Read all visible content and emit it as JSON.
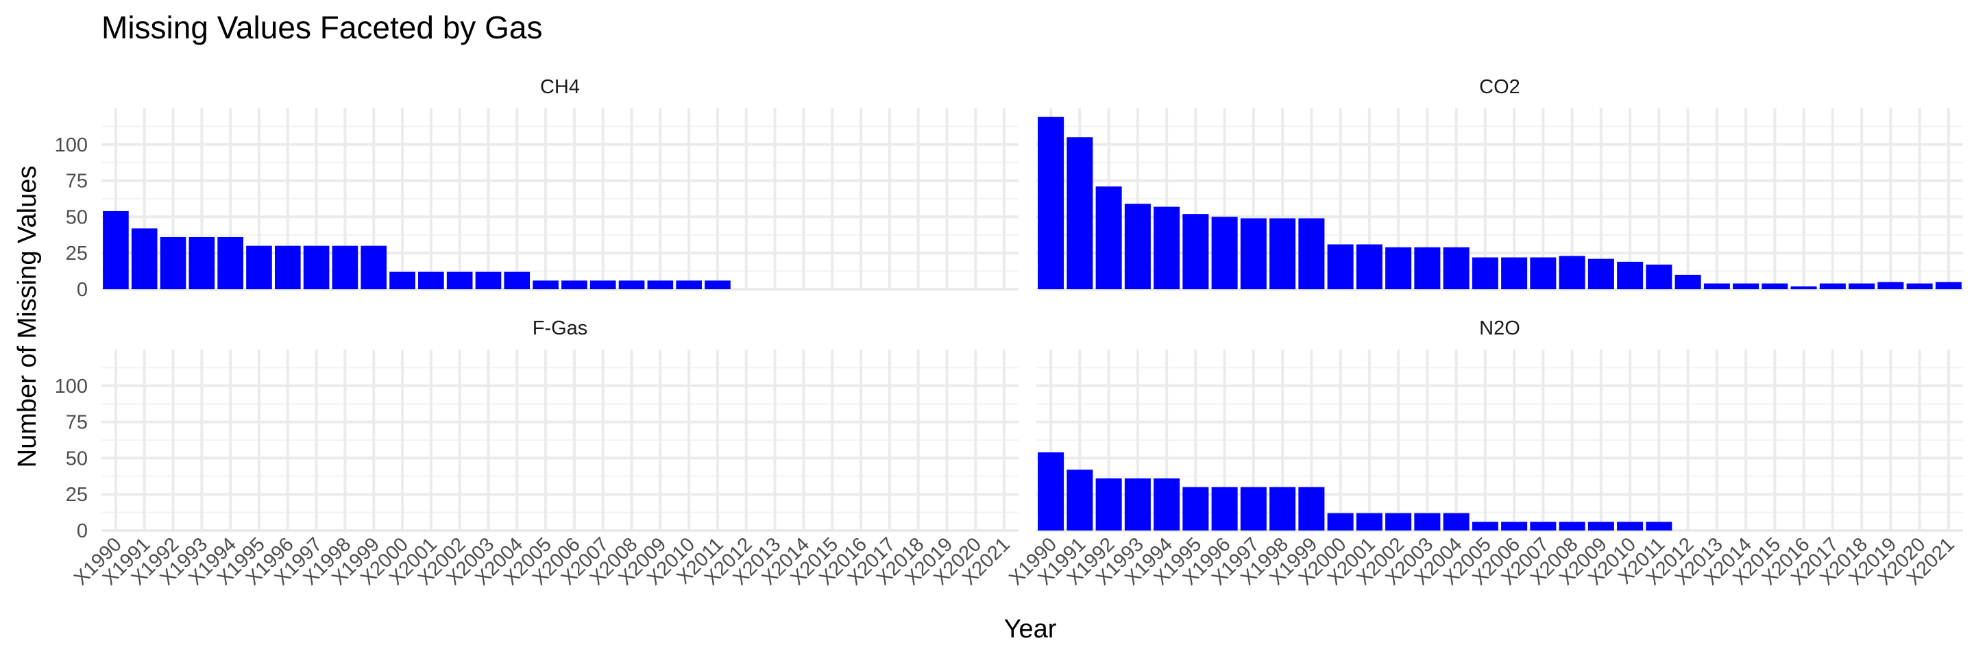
{
  "chart_data": {
    "type": "bar",
    "title": "Missing Values Faceted by Gas",
    "xlabel": "Year",
    "ylabel": "Number of Missing Values",
    "ylim": [
      0,
      125
    ],
    "yticks": [
      0,
      25,
      50,
      75,
      100
    ],
    "grid": true,
    "legend": "none",
    "bar_color": "#0000FF",
    "categories": [
      "X1990",
      "X1991",
      "X1992",
      "X1993",
      "X1994",
      "X1995",
      "X1996",
      "X1997",
      "X1998",
      "X1999",
      "X2000",
      "X2001",
      "X2002",
      "X2003",
      "X2004",
      "X2005",
      "X2006",
      "X2007",
      "X2008",
      "X2009",
      "X2010",
      "X2011",
      "X2012",
      "X2013",
      "X2014",
      "X2015",
      "X2016",
      "X2017",
      "X2018",
      "X2019",
      "X2020",
      "X2021"
    ],
    "facets": [
      {
        "name": "CH4",
        "values": [
          54,
          42,
          36,
          36,
          36,
          30,
          30,
          30,
          30,
          30,
          12,
          12,
          12,
          12,
          12,
          6,
          6,
          6,
          6,
          6,
          6,
          6,
          0,
          0,
          0,
          0,
          0,
          0,
          0,
          0,
          0,
          0
        ]
      },
      {
        "name": "CO2",
        "values": [
          119,
          105,
          71,
          59,
          57,
          52,
          50,
          49,
          49,
          49,
          31,
          31,
          29,
          29,
          29,
          22,
          22,
          22,
          23,
          21,
          19,
          17,
          10,
          4,
          4,
          4,
          2,
          4,
          4,
          5,
          4,
          5
        ]
      },
      {
        "name": "F-Gas",
        "values": [
          0,
          0,
          0,
          0,
          0,
          0,
          0,
          0,
          0,
          0,
          0,
          0,
          0,
          0,
          0,
          0,
          0,
          0,
          0,
          0,
          0,
          0,
          0,
          0,
          0,
          0,
          0,
          0,
          0,
          0,
          0,
          0
        ]
      },
      {
        "name": "N2O",
        "values": [
          54,
          42,
          36,
          36,
          36,
          30,
          30,
          30,
          30,
          30,
          12,
          12,
          12,
          12,
          12,
          6,
          6,
          6,
          6,
          6,
          6,
          6,
          0,
          0,
          0,
          0,
          0,
          0,
          0,
          0,
          0,
          0
        ]
      }
    ]
  }
}
